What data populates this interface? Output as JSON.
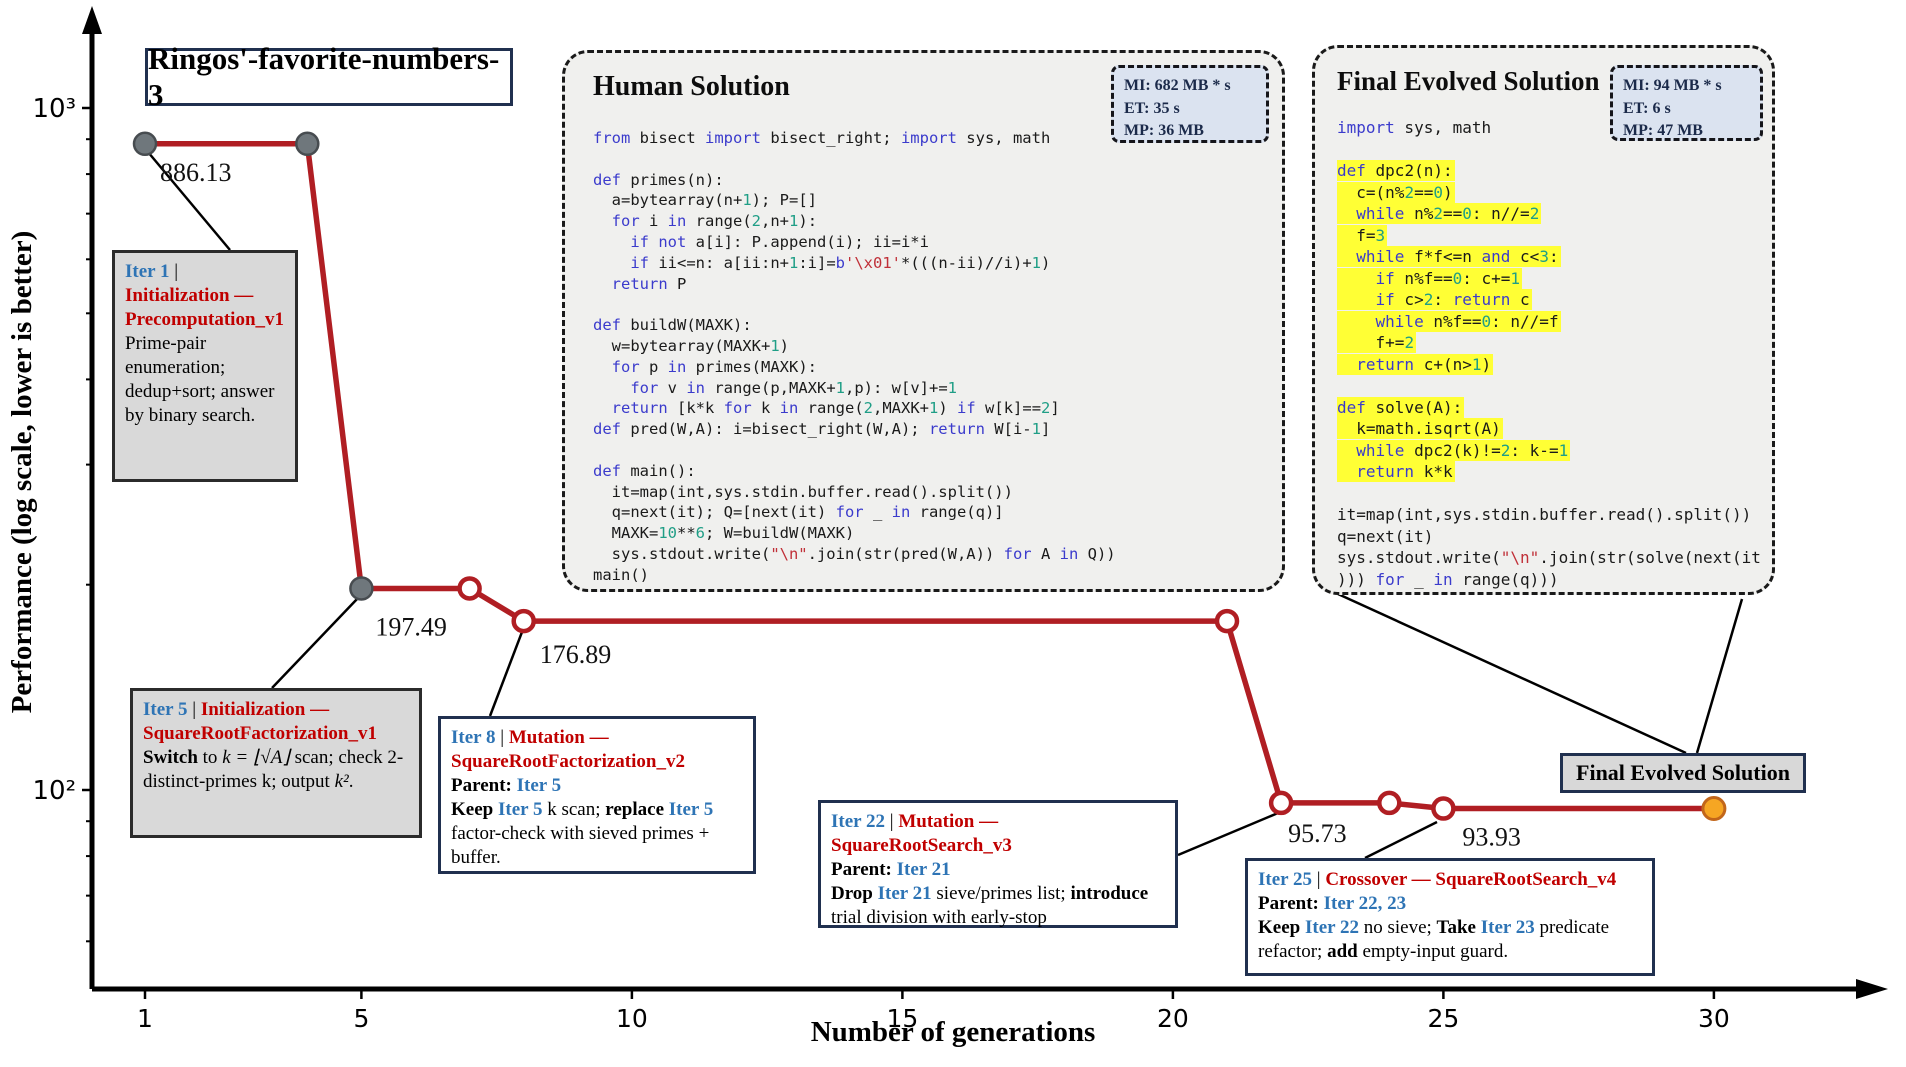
{
  "title_box": "Ringos'-favorite-numbers-3",
  "axes": {
    "x_label": "Number of generations",
    "y_label": "Performance (log scale, lower is better)"
  },
  "chart_data": {
    "type": "line",
    "title": "Ringos'-favorite-numbers-3",
    "xlabel": "Number of generations",
    "ylabel": "Performance (log scale, lower is better)",
    "y_scale": "log",
    "ylim": [
      50,
      1300
    ],
    "x_ticks": [
      1,
      5,
      10,
      15,
      20,
      25,
      30
    ],
    "y_major_ticks": [
      {
        "value": 1000,
        "label": "10³"
      },
      {
        "value": 100,
        "label": "10²"
      }
    ],
    "y_minor_ticks": [
      900,
      800,
      700,
      600,
      500,
      400,
      300,
      200,
      90,
      80,
      70,
      60
    ],
    "line_color": "#b01e23",
    "marker_colors": {
      "gray": "#6f777c",
      "open": "#ffffff",
      "orange": "#f6a623"
    },
    "points": [
      {
        "gen": 1,
        "value": 886.13,
        "marker": "gray"
      },
      {
        "gen": 4,
        "value": 886.13,
        "marker": "gray"
      },
      {
        "gen": 5,
        "value": 197.49,
        "marker": "gray"
      },
      {
        "gen": 7,
        "value": 197.49,
        "marker": "open"
      },
      {
        "gen": 8,
        "value": 176.89,
        "marker": "open"
      },
      {
        "gen": 21,
        "value": 176.89,
        "marker": "open"
      },
      {
        "gen": 22,
        "value": 95.73,
        "marker": "open"
      },
      {
        "gen": 24,
        "value": 95.73,
        "marker": "open"
      },
      {
        "gen": 25,
        "value": 93.93,
        "marker": "open"
      },
      {
        "gen": 30,
        "value": 93.93,
        "marker": "orange"
      }
    ],
    "point_labels": [
      {
        "gen": 1,
        "value": 886.13,
        "text": "886.13"
      },
      {
        "gen": 5,
        "value": 197.49,
        "text": "197.49"
      },
      {
        "gen": 8,
        "value": 176.89,
        "text": "176.89"
      },
      {
        "gen": 22,
        "value": 95.73,
        "text": "95.73"
      },
      {
        "gen": 25,
        "value": 93.93,
        "text": "93.93"
      }
    ]
  },
  "human_solution": {
    "heading": "Human Solution",
    "metrics": [
      "MI: 682 MB * s",
      "ET: 35 s",
      "MP: 36 MB"
    ],
    "code_lines": [
      "from bisect import bisect_right; import sys, math",
      "",
      "def primes(n):",
      "  a=bytearray(n+1); P=[]",
      "  for i in range(2,n+1):",
      "    if not a[i]: P.append(i); ii=i*i",
      "    if ii<=n: a[ii:n+1:i]=b'\\x01'*(((n-ii)//i)+1)",
      "  return P",
      "",
      "def buildW(MAXK):",
      "  w=bytearray(MAXK+1)",
      "  for p in primes(MAXK):",
      "    for v in range(p,MAXK+1,p): w[v]+=1",
      "  return [k*k for k in range(2,MAXK+1) if w[k]==2]",
      "def pred(W,A): i=bisect_right(W,A); return W[i-1]",
      "",
      "def main():",
      "  it=map(int,sys.stdin.buffer.read().split())",
      "  q=next(it); Q=[next(it) for _ in range(q)]",
      "  MAXK=10**6; W=buildW(MAXK)",
      "  sys.stdout.write(\"\\n\".join(str(pred(W,A)) for A in Q))",
      "main()"
    ],
    "highlight_lines": []
  },
  "evolved_solution": {
    "heading": "Final Evolved Solution",
    "metrics": [
      "MI: 94 MB * s",
      "ET: 6 s",
      "MP: 47 MB"
    ],
    "code_lines": [
      "import sys, math",
      "",
      "def dpc2(n):",
      "  c=(n%2==0)",
      "  while n%2==0: n//=2",
      "  f=3",
      "  while f*f<=n and c<3:",
      "    if n%f==0: c+=1",
      "    if c>2: return c",
      "    while n%f==0: n//=f",
      "    f+=2",
      "  return c+(n>1)",
      "",
      "def solve(A):",
      "  k=math.isqrt(A)",
      "  while dpc2(k)!=2: k-=1",
      "  return k*k",
      "",
      "it=map(int,sys.stdin.buffer.read().split())",
      "q=next(it)",
      "sys.stdout.write(\"\\n\".join(str(solve(next(it",
      "))) for _ in range(q)))"
    ],
    "highlight_lines": [
      3,
      4,
      5,
      6,
      7,
      8,
      9,
      10,
      11,
      12,
      14,
      15,
      16,
      17
    ]
  },
  "iter_boxes": [
    {
      "id": "iter1",
      "style": "gray",
      "segments": [
        {
          "t": "Iter 1",
          "c": "b",
          "w": 1
        },
        {
          "t": " | ",
          "c": "k"
        },
        {
          "t": "Initialization — Precomputation_v1",
          "c": "r",
          "w": 1,
          "br": 1
        },
        {
          "t": "Prime-pair enumeration; dedup+sort; answer by binary search.",
          "c": "k"
        }
      ]
    },
    {
      "id": "iter5",
      "style": "gray",
      "segments": [
        {
          "t": "Iter 5",
          "c": "b",
          "w": 1
        },
        {
          "t": " | ",
          "c": "k"
        },
        {
          "t": "Initialization — SquareRootFactorization_v1",
          "c": "r",
          "w": 1,
          "br": 1
        },
        {
          "t": "Switch",
          "c": "k",
          "w": 1
        },
        {
          "t": " to ",
          "c": "k"
        },
        {
          "t": "k = ⌊√A⌋",
          "c": "k",
          "i": 1
        },
        {
          "t": " scan; check 2-distinct-primes k; output ",
          "c": "k"
        },
        {
          "t": "k²",
          "c": "k",
          "i": 1
        },
        {
          "t": ".",
          "c": "k"
        }
      ]
    },
    {
      "id": "iter8",
      "style": "white",
      "segments": [
        {
          "t": "Iter 8",
          "c": "b",
          "w": 1
        },
        {
          "t": " | ",
          "c": "k"
        },
        {
          "t": "Mutation — SquareRootFactorization_v2",
          "c": "r",
          "w": 1,
          "br": 1
        },
        {
          "t": "Parent: ",
          "c": "k",
          "w": 1
        },
        {
          "t": "Iter 5",
          "c": "b",
          "w": 1,
          "br": 1
        },
        {
          "t": "Keep ",
          "c": "k",
          "w": 1
        },
        {
          "t": "Iter 5",
          "c": "b",
          "w": 1
        },
        {
          "t": " k scan; ",
          "c": "k"
        },
        {
          "t": "replace ",
          "c": "k",
          "w": 1
        },
        {
          "t": "Iter 5",
          "c": "b",
          "w": 1
        },
        {
          "t": " factor-check with sieved primes + buffer.",
          "c": "k"
        }
      ]
    },
    {
      "id": "iter22",
      "style": "white",
      "segments": [
        {
          "t": "Iter 22",
          "c": "b",
          "w": 1
        },
        {
          "t": " | ",
          "c": "k"
        },
        {
          "t": "Mutation — SquareRootSearch_v3",
          "c": "r",
          "w": 1,
          "br": 1
        },
        {
          "t": "Parent: ",
          "c": "k",
          "w": 1
        },
        {
          "t": "Iter 21",
          "c": "b",
          "w": 1,
          "br": 1
        },
        {
          "t": "Drop ",
          "c": "k",
          "w": 1
        },
        {
          "t": "Iter 21",
          "c": "b",
          "w": 1
        },
        {
          "t": " sieve/primes list; ",
          "c": "k"
        },
        {
          "t": "introduce",
          "c": "k",
          "w": 1
        },
        {
          "t": " trial division with early-stop",
          "c": "k"
        }
      ]
    },
    {
      "id": "iter25",
      "style": "white",
      "segments": [
        {
          "t": "Iter 25",
          "c": "b",
          "w": 1
        },
        {
          "t": " | ",
          "c": "k"
        },
        {
          "t": "Crossover — SquareRootSearch_v4",
          "c": "r",
          "w": 1,
          "br": 1
        },
        {
          "t": "Parent: ",
          "c": "k",
          "w": 1
        },
        {
          "t": "Iter 22, 23",
          "c": "b",
          "w": 1,
          "br": 1
        },
        {
          "t": "Keep ",
          "c": "k",
          "w": 1
        },
        {
          "t": "Iter 22",
          "c": "b",
          "w": 1
        },
        {
          "t": " no sieve; ",
          "c": "k"
        },
        {
          "t": "Take ",
          "c": "k",
          "w": 1
        },
        {
          "t": "Iter 23",
          "c": "b",
          "w": 1
        },
        {
          "t": " predicate refactor; ",
          "c": "k"
        },
        {
          "t": "add",
          "c": "k",
          "w": 1
        },
        {
          "t": " empty-input guard.",
          "c": "k"
        }
      ]
    }
  ],
  "final_label": "Final Evolved Solution"
}
